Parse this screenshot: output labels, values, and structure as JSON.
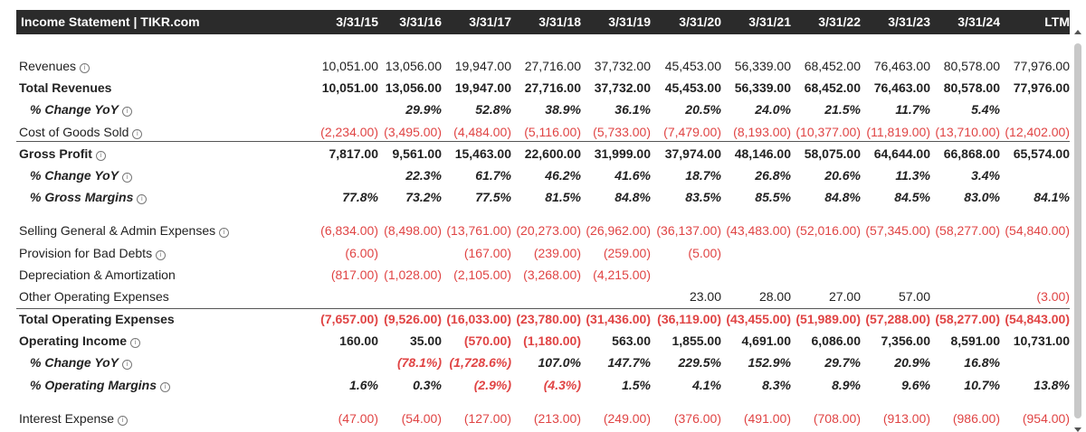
{
  "header": {
    "title": "Income Statement | TIKR.com",
    "columns": [
      "3/31/15",
      "3/31/16",
      "3/31/17",
      "3/31/18",
      "3/31/19",
      "3/31/20",
      "3/31/21",
      "3/31/22",
      "3/31/23",
      "3/31/24",
      "LTM"
    ]
  },
  "info_glyph": "i",
  "rows": [
    {
      "label": "Revenues",
      "style": "normal",
      "info": true,
      "values": [
        "10,051.00",
        "13,056.00",
        "19,947.00",
        "27,716.00",
        "37,732.00",
        "45,453.00",
        "56,339.00",
        "68,452.00",
        "76,463.00",
        "80,578.00",
        "77,976.00"
      ]
    },
    {
      "label": "Total Revenues",
      "style": "bold",
      "info": false,
      "values": [
        "10,051.00",
        "13,056.00",
        "19,947.00",
        "27,716.00",
        "37,732.00",
        "45,453.00",
        "56,339.00",
        "68,452.00",
        "76,463.00",
        "80,578.00",
        "77,976.00"
      ]
    },
    {
      "label": "% Change YoY",
      "style": "pct",
      "info": true,
      "values": [
        "",
        "29.9%",
        "52.8%",
        "38.9%",
        "36.1%",
        "20.5%",
        "24.0%",
        "21.5%",
        "11.7%",
        "5.4%",
        ""
      ]
    },
    {
      "label": "Cost of Goods Sold",
      "style": "normal",
      "info": true,
      "values": [
        "(2,234.00)",
        "(3,495.00)",
        "(4,484.00)",
        "(5,116.00)",
        "(5,733.00)",
        "(7,479.00)",
        "(8,193.00)",
        "(10,377.00)",
        "(11,819.00)",
        "(13,710.00)",
        "(12,402.00)"
      ]
    },
    {
      "label": "Gross Profit",
      "style": "bold",
      "info": true,
      "values": [
        "7,817.00",
        "9,561.00",
        "15,463.00",
        "22,600.00",
        "31,999.00",
        "37,974.00",
        "48,146.00",
        "58,075.00",
        "64,644.00",
        "66,868.00",
        "65,574.00"
      ]
    },
    {
      "label": "% Change YoY",
      "style": "pct",
      "info": true,
      "values": [
        "",
        "22.3%",
        "61.7%",
        "46.2%",
        "41.6%",
        "18.7%",
        "26.8%",
        "20.6%",
        "11.3%",
        "3.4%",
        ""
      ]
    },
    {
      "label": "% Gross Margins",
      "style": "pct",
      "info": true,
      "values": [
        "77.8%",
        "73.2%",
        "77.5%",
        "81.5%",
        "84.8%",
        "83.5%",
        "85.5%",
        "84.8%",
        "84.5%",
        "83.0%",
        "84.1%"
      ]
    },
    {
      "label": "Selling General & Admin Expenses",
      "style": "normal",
      "info": true,
      "values": [
        "(6,834.00)",
        "(8,498.00)",
        "(13,761.00)",
        "(20,273.00)",
        "(26,962.00)",
        "(36,137.00)",
        "(43,483.00)",
        "(52,016.00)",
        "(57,345.00)",
        "(58,277.00)",
        "(54,840.00)"
      ]
    },
    {
      "label": "Provision for Bad Debts",
      "style": "normal",
      "info": true,
      "values": [
        "(6.00)",
        "",
        "(167.00)",
        "(239.00)",
        "(259.00)",
        "(5.00)",
        "",
        "",
        "",
        "",
        ""
      ]
    },
    {
      "label": "Depreciation & Amortization",
      "style": "normal",
      "info": false,
      "values": [
        "(817.00)",
        "(1,028.00)",
        "(2,105.00)",
        "(3,268.00)",
        "(4,215.00)",
        "",
        "",
        "",
        "",
        "",
        ""
      ]
    },
    {
      "label": "Other Operating Expenses",
      "style": "normal",
      "info": false,
      "values": [
        "",
        "",
        "",
        "",
        "",
        "23.00",
        "28.00",
        "27.00",
        "57.00",
        "",
        "(3.00)"
      ]
    },
    {
      "label": "Total Operating Expenses",
      "style": "bold",
      "info": false,
      "values": [
        "(7,657.00)",
        "(9,526.00)",
        "(16,033.00)",
        "(23,780.00)",
        "(31,436.00)",
        "(36,119.00)",
        "(43,455.00)",
        "(51,989.00)",
        "(57,288.00)",
        "(58,277.00)",
        "(54,843.00)"
      ]
    },
    {
      "label": "Operating Income",
      "style": "bold",
      "info": true,
      "values": [
        "160.00",
        "35.00",
        "(570.00)",
        "(1,180.00)",
        "563.00",
        "1,855.00",
        "4,691.00",
        "6,086.00",
        "7,356.00",
        "8,591.00",
        "10,731.00"
      ]
    },
    {
      "label": "% Change YoY",
      "style": "pct",
      "info": true,
      "values": [
        "",
        "(78.1%)",
        "(1,728.6%)",
        "107.0%",
        "147.7%",
        "229.5%",
        "152.9%",
        "29.7%",
        "20.9%",
        "16.8%",
        ""
      ]
    },
    {
      "label": "% Operating Margins",
      "style": "pct",
      "info": true,
      "values": [
        "1.6%",
        "0.3%",
        "(2.9%)",
        "(4.3%)",
        "1.5%",
        "4.1%",
        "8.3%",
        "8.9%",
        "9.6%",
        "10.7%",
        "13.8%"
      ]
    },
    {
      "label": "Interest Expense",
      "style": "normal",
      "info": true,
      "values": [
        "(47.00)",
        "(54.00)",
        "(127.00)",
        "(213.00)",
        "(249.00)",
        "(376.00)",
        "(491.00)",
        "(708.00)",
        "(913.00)",
        "(986.00)",
        "(954.00)"
      ]
    }
  ],
  "colors": {
    "header_bg": "#2b2b2b",
    "negative": "#e04444",
    "divider": "#555555"
  }
}
